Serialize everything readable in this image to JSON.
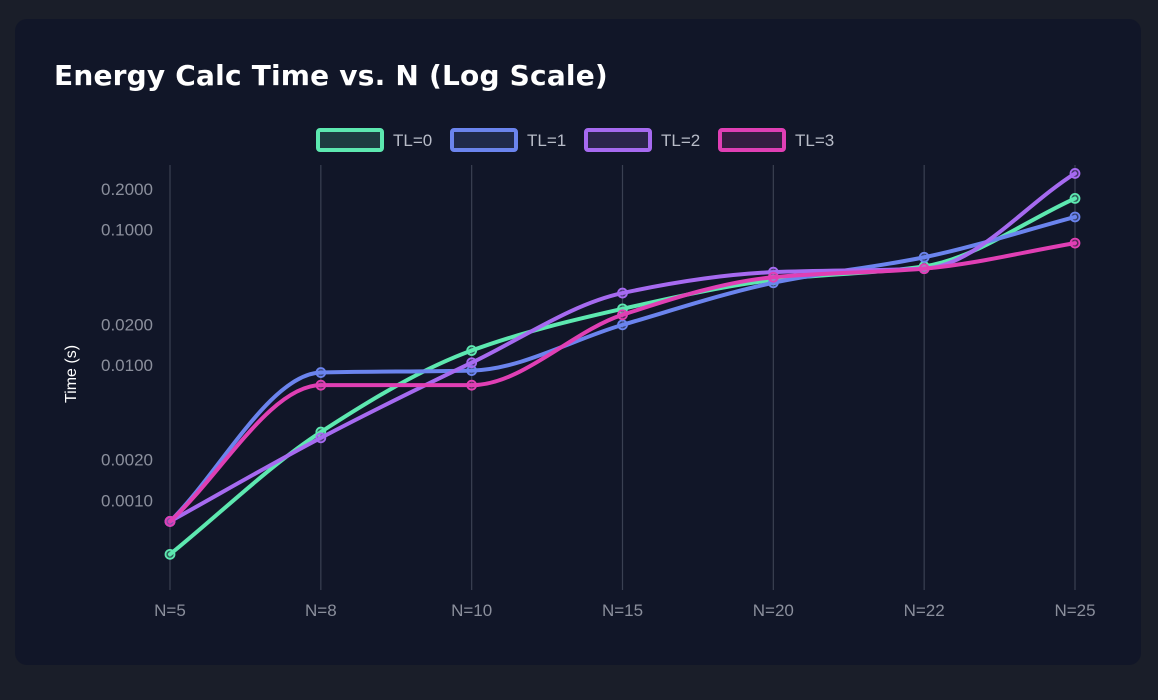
{
  "card": {
    "title": "Energy Calc Time vs. N (Log Scale)"
  },
  "colors": {
    "page_bg": "#1a1e29",
    "card_bg": "#111628",
    "grid": "#3a4052",
    "tick_text": "#8b8f9c",
    "legend_text": "#b8bcc8",
    "axis_label": "#ffffff"
  },
  "chart_data": {
    "type": "line",
    "title": "Energy Calc Time vs. N (Log Scale)",
    "xlabel": "",
    "ylabel": "Time (s)",
    "yscale": "log",
    "categories": [
      "N=5",
      "N=8",
      "N=10",
      "N=15",
      "N=20",
      "N=22",
      "N=25"
    ],
    "yticks": [
      0.2,
      0.1,
      0.02,
      0.01,
      0.002,
      0.001
    ],
    "ytick_labels": [
      "0.2000",
      "0.1000",
      "0.0200",
      "0.0100",
      "0.0020",
      "0.0010"
    ],
    "ylim": [
      0.00025,
      0.3
    ],
    "grid": "vertical",
    "legend": "top-center",
    "series": [
      {
        "name": "TL=0",
        "color": "#5de8b0",
        "values": [
          0.0004,
          0.0032,
          0.0128,
          0.026,
          0.0425,
          0.0535,
          0.17
        ]
      },
      {
        "name": "TL=1",
        "color": "#6b84ee",
        "values": [
          0.0007,
          0.0088,
          0.0091,
          0.0198,
          0.0405,
          0.0625,
          0.124
        ]
      },
      {
        "name": "TL=2",
        "color": "#a66af0",
        "values": [
          0.0007,
          0.0029,
          0.0104,
          0.034,
          0.0485,
          0.0515,
          0.26
        ]
      },
      {
        "name": "TL=3",
        "color": "#e03fb4",
        "values": [
          0.0007,
          0.0071,
          0.0071,
          0.0235,
          0.0445,
          0.0515,
          0.0795
        ]
      }
    ]
  }
}
